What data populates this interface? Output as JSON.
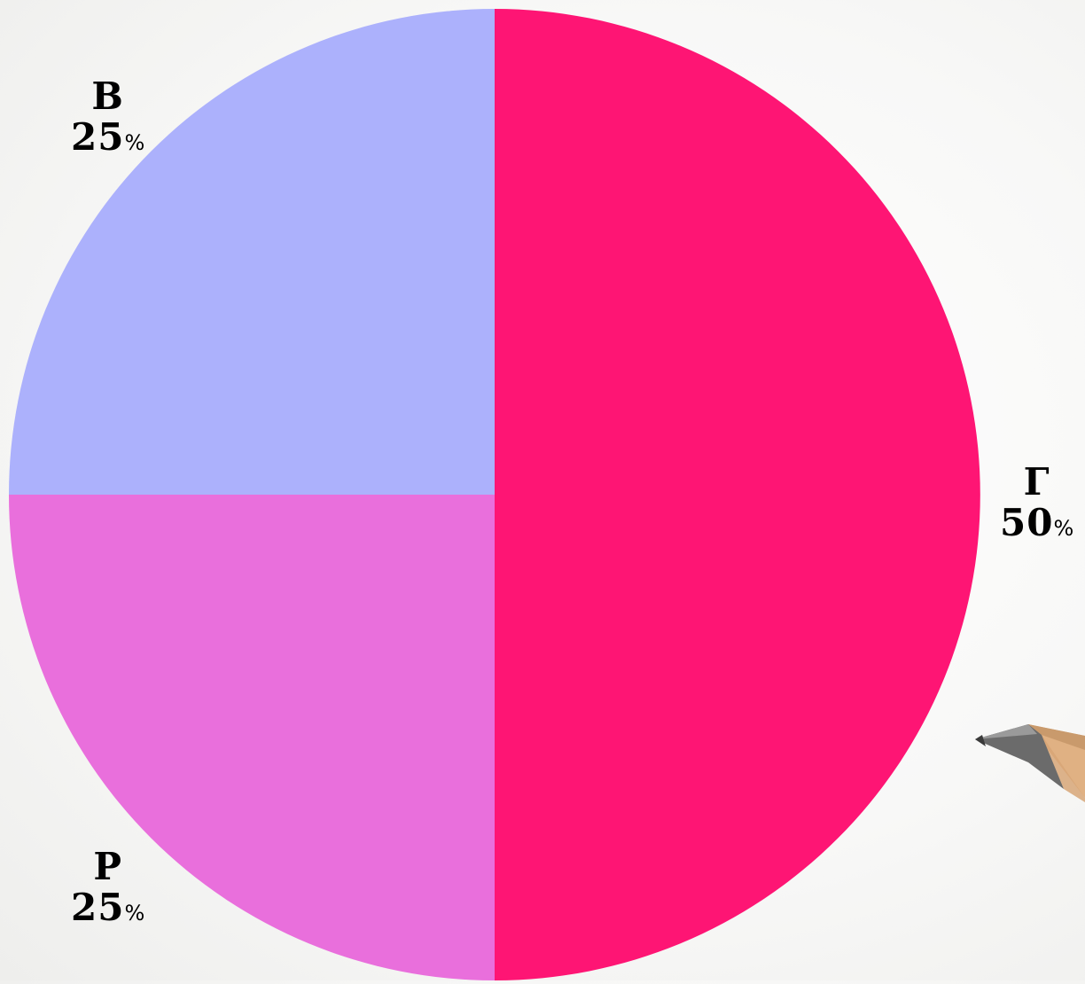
{
  "chart_data": {
    "type": "pie",
    "categories": [
      "Г",
      "Р",
      "В"
    ],
    "values": [
      50,
      25,
      25
    ],
    "labels": [
      "50",
      "25",
      "25"
    ],
    "unit": "%",
    "colors": [
      "#fe1574",
      "#e96fdc",
      "#acb1fc"
    ],
    "start_angle": "12 o'clock",
    "direction": "clockwise",
    "title": "",
    "legend": "none"
  },
  "decoration": {
    "pencil_icon": "pencil-icon"
  }
}
